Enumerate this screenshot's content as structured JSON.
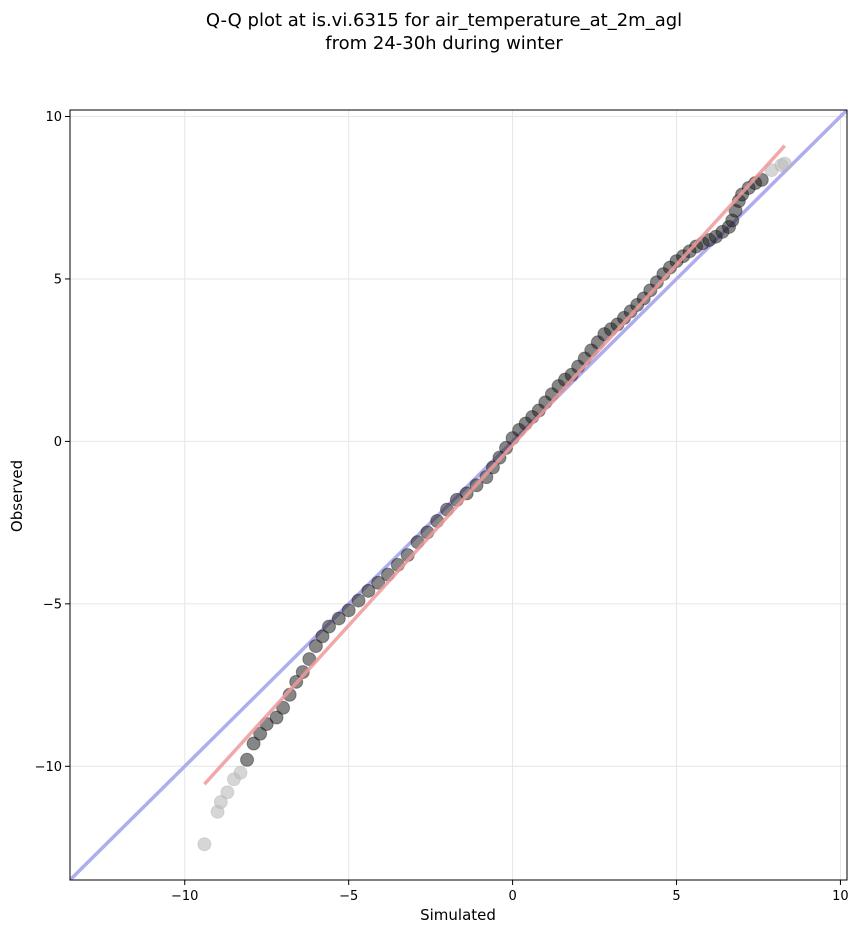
{
  "chart_data": {
    "type": "scatter",
    "title": "Q-Q plot at is.vi.6315 for air_temperature_at_2m_agl",
    "subtitle": "from 24-30h during winter",
    "xlabel": "Simulated",
    "ylabel": "Observed",
    "xlim": [
      -13.5,
      10.2
    ],
    "ylim": [
      -13.5,
      10.2
    ],
    "xticks": [
      -10,
      -5,
      0,
      5,
      10
    ],
    "yticks": [
      -10,
      -5,
      0,
      5,
      10
    ],
    "tick_labels_x": [
      "−10",
      "−5",
      "0",
      "5",
      "10"
    ],
    "tick_labels_y": [
      "−10",
      "−5",
      "0",
      "5",
      "10"
    ],
    "grid": true,
    "identity_line": {
      "color": "#aaaaee",
      "from": [
        -13.5,
        -13.5
      ],
      "to": [
        10.2,
        10.2
      ]
    },
    "fit_line": {
      "color": "#ee9999",
      "from": [
        -9.4,
        -10.55
      ],
      "to": [
        8.3,
        9.1
      ]
    },
    "points_color": "#222222",
    "tail_points_color": "#bbbbbb",
    "points": [
      [
        -9.4,
        -12.4
      ],
      [
        -9.0,
        -11.4
      ],
      [
        -8.9,
        -11.1
      ],
      [
        -8.7,
        -10.8
      ],
      [
        -8.5,
        -10.4
      ],
      [
        -8.3,
        -10.2
      ],
      [
        -8.1,
        -9.8
      ],
      [
        -7.9,
        -9.3
      ],
      [
        -7.7,
        -9.0
      ],
      [
        -7.5,
        -8.7
      ],
      [
        -7.2,
        -8.5
      ],
      [
        -7.0,
        -8.2
      ],
      [
        -6.8,
        -7.8
      ],
      [
        -6.6,
        -7.4
      ],
      [
        -6.4,
        -7.1
      ],
      [
        -6.2,
        -6.7
      ],
      [
        -6.0,
        -6.3
      ],
      [
        -5.8,
        -6.0
      ],
      [
        -5.6,
        -5.7
      ],
      [
        -5.3,
        -5.45
      ],
      [
        -5.0,
        -5.2
      ],
      [
        -4.7,
        -4.9
      ],
      [
        -4.4,
        -4.6
      ],
      [
        -4.1,
        -4.35
      ],
      [
        -3.8,
        -4.1
      ],
      [
        -3.5,
        -3.8
      ],
      [
        -3.2,
        -3.5
      ],
      [
        -2.9,
        -3.1
      ],
      [
        -2.6,
        -2.8
      ],
      [
        -2.3,
        -2.45
      ],
      [
        -2.0,
        -2.1
      ],
      [
        -1.7,
        -1.8
      ],
      [
        -1.4,
        -1.6
      ],
      [
        -1.1,
        -1.35
      ],
      [
        -0.8,
        -1.1
      ],
      [
        -0.6,
        -0.8
      ],
      [
        -0.4,
        -0.5
      ],
      [
        -0.2,
        -0.2
      ],
      [
        0.0,
        0.1
      ],
      [
        0.2,
        0.35
      ],
      [
        0.4,
        0.55
      ],
      [
        0.6,
        0.75
      ],
      [
        0.8,
        0.95
      ],
      [
        1.0,
        1.2
      ],
      [
        1.2,
        1.45
      ],
      [
        1.4,
        1.7
      ],
      [
        1.6,
        1.9
      ],
      [
        1.8,
        2.05
      ],
      [
        2.0,
        2.3
      ],
      [
        2.2,
        2.55
      ],
      [
        2.4,
        2.8
      ],
      [
        2.6,
        3.05
      ],
      [
        2.8,
        3.3
      ],
      [
        3.0,
        3.45
      ],
      [
        3.2,
        3.6
      ],
      [
        3.4,
        3.8
      ],
      [
        3.6,
        4.0
      ],
      [
        3.8,
        4.2
      ],
      [
        4.0,
        4.4
      ],
      [
        4.2,
        4.65
      ],
      [
        4.4,
        4.9
      ],
      [
        4.6,
        5.15
      ],
      [
        4.8,
        5.35
      ],
      [
        5.0,
        5.55
      ],
      [
        5.2,
        5.7
      ],
      [
        5.4,
        5.85
      ],
      [
        5.6,
        6.0
      ],
      [
        5.8,
        6.1
      ],
      [
        6.0,
        6.2
      ],
      [
        6.2,
        6.3
      ],
      [
        6.4,
        6.45
      ],
      [
        6.6,
        6.6
      ],
      [
        6.7,
        6.8
      ],
      [
        6.8,
        7.1
      ],
      [
        6.9,
        7.4
      ],
      [
        7.0,
        7.6
      ],
      [
        7.2,
        7.8
      ],
      [
        7.4,
        7.95
      ],
      [
        7.6,
        8.05
      ],
      [
        7.9,
        8.35
      ],
      [
        8.2,
        8.5
      ],
      [
        8.3,
        8.55
      ]
    ]
  }
}
